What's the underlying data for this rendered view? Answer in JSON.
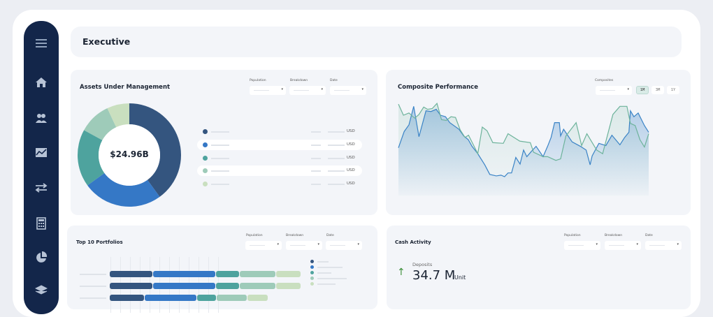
{
  "header": {
    "title": "Executive"
  },
  "sidebar": {
    "items": [
      "menu-icon",
      "home-icon",
      "users-icon",
      "chart-icon",
      "transfer-icon",
      "calculator-icon",
      "pie-chart-icon",
      "layers-icon"
    ]
  },
  "filters": {
    "population": "Population",
    "breakdown": "Breakdown",
    "date": "Date",
    "composites": "Composites"
  },
  "aum": {
    "title": "Assets Under Management",
    "total": "$24.96B",
    "currency": "USD",
    "rows": 5
  },
  "composite": {
    "title": "Composite Performance",
    "ranges": [
      "1M",
      "3M",
      "1Y"
    ],
    "active_range": "1M"
  },
  "top10": {
    "title": "Top 10 Portfolios"
  },
  "cash": {
    "title": "Cash Activity",
    "label": "Deposits",
    "value": "34.7 M",
    "unit": "Unit",
    "trend": "up"
  },
  "colors": {
    "navy": "#34557f",
    "blue": "#3578c6",
    "teal": "#4ea39e",
    "sage": "#9ecbb9",
    "pale": "#c9dfbf",
    "sidebar": "#13264a",
    "green_line": "#6db39b",
    "blue_line": "#3a83c6",
    "up_arrow": "#3d8f3a"
  },
  "chart_data": [
    {
      "type": "pie",
      "title": "Assets Under Management",
      "center_label": "$24.96B",
      "values": [
        40,
        25,
        18,
        10,
        7
      ],
      "colors": [
        "#34557f",
        "#3578c6",
        "#4ea39e",
        "#9ecbb9",
        "#c9dfbf"
      ]
    },
    {
      "type": "area",
      "title": "Composite Performance",
      "series": [
        {
          "color": "#3a83c6",
          "points": [
            [
              0,
              39
            ],
            [
              2.3,
              61
            ],
            [
              4.2,
              70
            ],
            [
              6.1,
              95
            ],
            [
              8.2,
              54
            ],
            [
              11,
              89
            ],
            [
              13,
              88
            ],
            [
              15.1,
              91
            ],
            [
              16.8,
              83
            ],
            [
              18.8,
              81
            ],
            [
              20.5,
              73
            ],
            [
              24.2,
              64
            ],
            [
              26.1,
              55
            ],
            [
              27.9,
              50
            ],
            [
              29.4,
              41
            ],
            [
              31.7,
              31
            ],
            [
              34.5,
              16
            ],
            [
              36.5,
              3
            ],
            [
              39.1,
              1
            ],
            [
              41,
              2
            ],
            [
              42.4,
              0
            ],
            [
              43.8,
              5
            ],
            [
              45.2,
              5
            ],
            [
              46.9,
              26
            ],
            [
              48.6,
              17
            ],
            [
              50,
              36
            ],
            [
              51.3,
              27
            ],
            [
              53.1,
              34
            ],
            [
              55,
              41
            ],
            [
              57.8,
              27
            ],
            [
              59.6,
              41
            ],
            [
              61,
              53
            ],
            [
              62.4,
              73
            ],
            [
              64.3,
              73
            ],
            [
              64.8,
              55
            ],
            [
              66,
              64
            ],
            [
              69.4,
              47
            ],
            [
              72.7,
              41
            ],
            [
              75,
              36
            ],
            [
              76.6,
              16
            ],
            [
              77.4,
              28
            ],
            [
              80.1,
              45
            ],
            [
              82.9,
              42
            ],
            [
              85.3,
              56
            ],
            [
              88.5,
              43
            ],
            [
              90.4,
              53
            ],
            [
              92.1,
              60
            ],
            [
              92.7,
              89
            ],
            [
              94.1,
              81
            ],
            [
              95.8,
              86
            ],
            [
              98.3,
              69
            ],
            [
              100,
              60
            ]
          ]
        },
        {
          "color": "#6db39b",
          "points": [
            [
              0,
              98
            ],
            [
              2,
              83
            ],
            [
              4.2,
              86
            ],
            [
              6.5,
              79
            ],
            [
              8.2,
              84
            ],
            [
              10.1,
              94
            ],
            [
              11.6,
              91
            ],
            [
              13.5,
              92
            ],
            [
              15.4,
              99
            ],
            [
              17.2,
              77
            ],
            [
              19.1,
              76
            ],
            [
              21,
              81
            ],
            [
              22.8,
              80
            ],
            [
              24.7,
              63
            ],
            [
              26.6,
              53
            ],
            [
              28,
              56
            ],
            [
              29.8,
              44
            ],
            [
              31.7,
              31
            ],
            [
              33.5,
              67
            ],
            [
              35.4,
              62
            ],
            [
              37.7,
              46
            ],
            [
              41.9,
              45
            ],
            [
              43.8,
              58
            ],
            [
              48.5,
              48
            ],
            [
              52.7,
              46
            ],
            [
              54,
              33
            ],
            [
              57.8,
              27
            ],
            [
              59.6,
              27
            ],
            [
              62.9,
              22
            ],
            [
              64.8,
              24
            ],
            [
              66.9,
              55
            ],
            [
              71,
              73
            ],
            [
              73.2,
              42
            ],
            [
              75.3,
              58
            ],
            [
              79.2,
              36
            ],
            [
              81.6,
              31
            ],
            [
              85.7,
              84
            ],
            [
              88.5,
              95
            ],
            [
              91.3,
              95
            ],
            [
              92.7,
              72
            ],
            [
              94.6,
              69
            ],
            [
              96.5,
              50
            ],
            [
              98.3,
              40
            ],
            [
              100,
              58
            ]
          ]
        }
      ]
    },
    {
      "type": "bar",
      "title": "Top 10 Portfolios",
      "stacked": true,
      "orientation": "horizontal",
      "series_colors": [
        "#34557f",
        "#3578c6",
        "#4ea39e",
        "#9ecbb9",
        "#c9dfbf"
      ],
      "rows": [
        [
          62,
          90,
          34,
          52,
          36
        ],
        [
          62,
          90,
          34,
          52,
          36
        ],
        [
          50,
          75,
          28,
          44,
          30
        ]
      ]
    }
  ]
}
